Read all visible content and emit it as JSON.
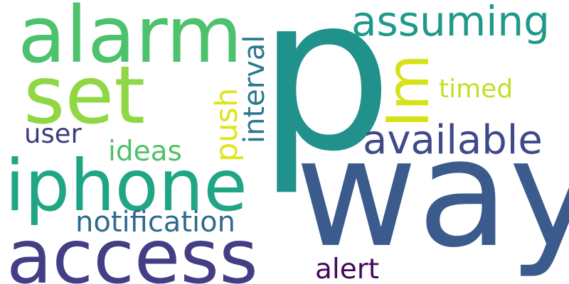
{
  "words": {
    "p": {
      "text": "p",
      "color": "#21918c"
    },
    "way": {
      "text": "way",
      "color": "#3b5b8c"
    },
    "alarm": {
      "text": "alarm",
      "color": "#4cc26c"
    },
    "set": {
      "text": "set",
      "color": "#8fd744"
    },
    "iphone": {
      "text": "iphone",
      "color": "#21a685"
    },
    "access": {
      "text": "access",
      "color": "#433e85"
    },
    "assuming": {
      "text": "assuming",
      "color": "#1f9a8a"
    },
    "im": {
      "text": "Im",
      "color": "#d8e219"
    },
    "available": {
      "text": "available",
      "color": "#3e4a89"
    },
    "timed": {
      "text": "timed",
      "color": "#c2df23"
    },
    "push": {
      "text": "push",
      "color": "#e2e418"
    },
    "interval": {
      "text": "interval",
      "color": "#29798e"
    },
    "user": {
      "text": "user",
      "color": "#3e3b7f"
    },
    "ideas": {
      "text": "ideas",
      "color": "#4fc169"
    },
    "notification": {
      "text": "notification",
      "color": "#306a8e"
    },
    "alert": {
      "text": "alert",
      "color": "#440a57"
    }
  }
}
